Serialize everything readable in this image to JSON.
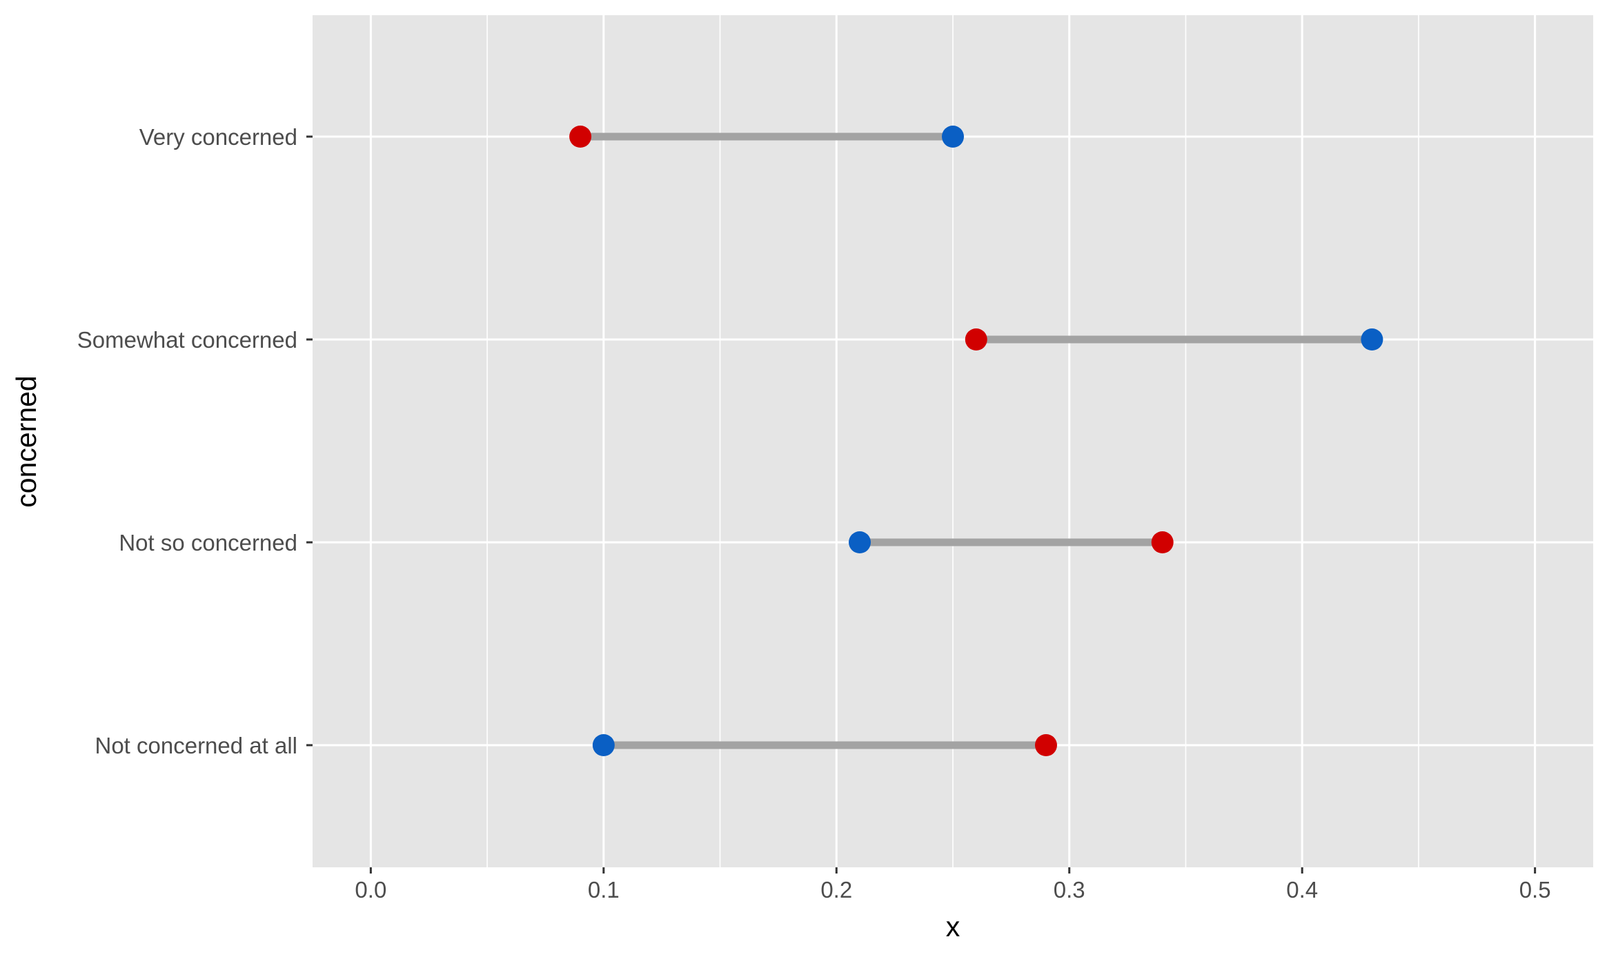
{
  "chart_data": {
    "type": "dumbbell",
    "xlabel": "x",
    "ylabel": "concerned",
    "xlim": [
      -0.025,
      0.525
    ],
    "x_ticks": [
      0.0,
      0.1,
      0.2,
      0.3,
      0.4,
      0.5
    ],
    "x_tick_labels": [
      "0.0",
      "0.1",
      "0.2",
      "0.3",
      "0.4",
      "0.5"
    ],
    "x_minor_ticks": [
      0.05,
      0.15,
      0.25,
      0.35,
      0.45
    ],
    "categories": [
      "Very concerned",
      "Somewhat concerned",
      "Not so concerned",
      "Not concerned at all"
    ],
    "red_values": [
      0.09,
      0.26,
      0.34,
      0.29
    ],
    "blue_values": [
      0.25,
      0.43,
      0.21,
      0.1
    ],
    "grid": true,
    "colors": {
      "panel_background": "#e5e5e5",
      "grid": "#ffffff",
      "segment": "#a3a3a3",
      "red_point": "#d10000",
      "blue_point": "#0a5fc4",
      "tick_text": "#4d4d4d",
      "axis_title": "#000000"
    }
  }
}
